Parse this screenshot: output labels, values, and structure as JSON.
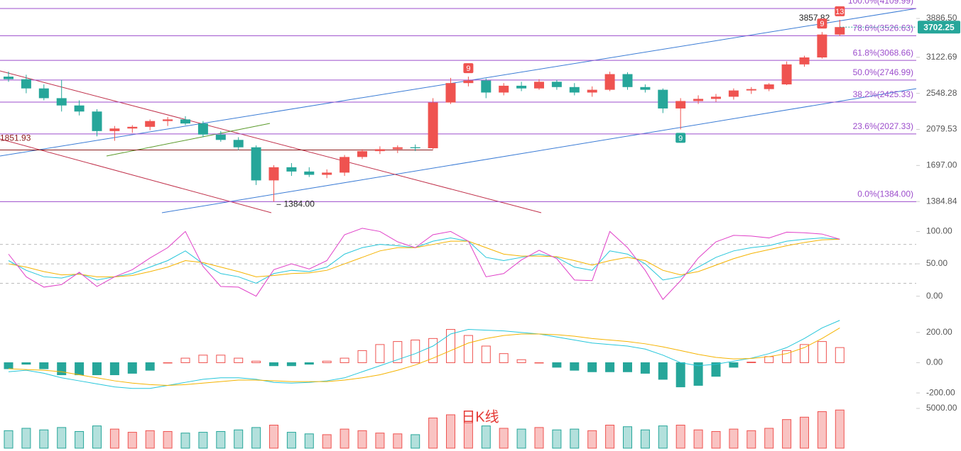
{
  "chart_data": [
    {
      "type": "candlestick",
      "log": true,
      "ylim": [
        1300,
        4313
      ],
      "yticks": [
        {
          "value": 3886.5,
          "label": "3886.50"
        },
        3122.69,
        2548.28,
        2079.53,
        {
          "value": 1697,
          "label": "1697.00"
        },
        1384.84
      ],
      "up_color": "#ef5350",
      "down_color": "#26a69a",
      "open": [
        2800,
        2760,
        2620,
        2480,
        2380,
        2300,
        2060,
        2090,
        2110,
        2180,
        2200,
        2150,
        2020,
        1960,
        1880,
        1560,
        1680,
        1640,
        1610,
        1630,
        1780,
        1840,
        1860,
        1880,
        1870,
        2420,
        2700,
        2740,
        2560,
        2660,
        2620,
        2720,
        2640,
        2560,
        2600,
        2840,
        2640,
        2600,
        2340,
        2440,
        2470,
        2500,
        2590,
        2610,
        2680,
        3000,
        3120,
        3550
      ],
      "high": [
        2880,
        2830,
        2680,
        2750,
        2450,
        2330,
        2120,
        2130,
        2200,
        2230,
        2240,
        2180,
        2060,
        1990,
        1900,
        1700,
        1720,
        1680,
        1660,
        1800,
        1860,
        1890,
        1900,
        1910,
        2480,
        2780,
        2800,
        2770,
        2700,
        2720,
        2760,
        2750,
        2700,
        2650,
        2880,
        2870,
        2680,
        2620,
        2480,
        2520,
        2540,
        2620,
        2640,
        2700,
        3050,
        3150,
        3600,
        3857.82
      ],
      "low": [
        2720,
        2550,
        2450,
        2300,
        2250,
        2000,
        1950,
        2040,
        2070,
        2120,
        2130,
        1990,
        1940,
        1850,
        1520,
        1384,
        1600,
        1590,
        1580,
        1600,
        1760,
        1810,
        1820,
        1840,
        1860,
        2400,
        2650,
        2480,
        2520,
        2580,
        2600,
        2600,
        2520,
        2500,
        2580,
        2600,
        2560,
        2280,
        2080,
        2400,
        2430,
        2460,
        2540,
        2580,
        2670,
        2960,
        3100,
        3520
      ],
      "close": [
        2760,
        2620,
        2480,
        2380,
        2300,
        2060,
        2090,
        2110,
        2180,
        2200,
        2150,
        2020,
        1960,
        1880,
        1560,
        1680,
        1640,
        1610,
        1630,
        1780,
        1840,
        1860,
        1880,
        1870,
        2420,
        2700,
        2740,
        2560,
        2660,
        2620,
        2720,
        2640,
        2560,
        2600,
        2840,
        2640,
        2600,
        2340,
        2440,
        2470,
        2500,
        2590,
        2610,
        2680,
        3000,
        3120,
        3550,
        3702.25
      ],
      "low_label": "1384.00",
      "level_line": 1851.93,
      "level_color": "#9c4dcc",
      "levels": [
        {
          "value": 4109.99,
          "label": "100.0%(4109.99)"
        },
        {
          "value": 3526.63,
          "label": "78.6%(3526.63)"
        },
        {
          "value": 3068.66,
          "label": "61.8%(3068.66)"
        },
        {
          "value": 2746.99,
          "label": "50.0%(2746.99)"
        },
        {
          "value": 2425.33,
          "label": "38.2%(2425.33)"
        },
        {
          "value": 2027.33,
          "label": "23.6%(2027.33)"
        },
        {
          "value": 1384,
          "label": "0.0%(1384.00)"
        }
      ],
      "markers": [
        "9",
        "9",
        "13",
        "9"
      ]
    },
    {
      "type": "line",
      "ylim": [
        -8,
        118
      ],
      "yticks": [
        {
          "value": 100,
          "label": "100.00"
        },
        {
          "value": 50,
          "label": "50.00"
        },
        {
          "value": 0,
          "label": "0.00"
        }
      ],
      "ref_lines": [
        80,
        50,
        20
      ],
      "series": [
        {
          "color": "#26c6da",
          "values": [
            55,
            40,
            30,
            28,
            35,
            25,
            30,
            35,
            45,
            55,
            70,
            50,
            35,
            30,
            20,
            35,
            40,
            38,
            45,
            65,
            75,
            80,
            78,
            75,
            85,
            90,
            85,
            60,
            55,
            60,
            65,
            60,
            45,
            40,
            70,
            65,
            50,
            25,
            30,
            45,
            60,
            70,
            75,
            78,
            85,
            88,
            90,
            88
          ]
        },
        {
          "color": "#f5b300",
          "values": [
            50,
            45,
            38,
            33,
            34,
            30,
            30,
            32,
            38,
            45,
            55,
            52,
            45,
            38,
            30,
            32,
            35,
            36,
            40,
            50,
            60,
            70,
            75,
            75,
            80,
            85,
            85,
            75,
            65,
            62,
            62,
            61,
            55,
            48,
            55,
            60,
            55,
            40,
            33,
            38,
            48,
            58,
            66,
            72,
            78,
            83,
            87,
            88
          ]
        },
        {
          "color": "#e040c8",
          "values": [
            65,
            30,
            14,
            18,
            37,
            15,
            30,
            41,
            59,
            75,
            100,
            46,
            15,
            14,
            0,
            41,
            50,
            42,
            55,
            95,
            105,
            100,
            84,
            75,
            95,
            100,
            85,
            30,
            35,
            56,
            71,
            58,
            25,
            24,
            100,
            75,
            40,
            -5,
            24,
            59,
            84,
            94,
            93,
            90,
            99,
            98,
            96,
            88
          ]
        }
      ]
    },
    {
      "type": "macd",
      "ylim": [
        -251,
        382
      ],
      "yticks": [
        {
          "value": 200,
          "label": "200.00"
        },
        {
          "value": 0,
          "label": "0.00"
        },
        {
          "value": -200,
          "label": "-200.00"
        }
      ],
      "series": [
        {
          "color": "#26c6da",
          "values": [
            -60,
            -50,
            -70,
            -100,
            -120,
            -140,
            -160,
            -170,
            -170,
            -150,
            -130,
            -110,
            -100,
            -100,
            -110,
            -130,
            -135,
            -130,
            -120,
            -100,
            -60,
            -20,
            20,
            60,
            110,
            190,
            220,
            215,
            210,
            200,
            190,
            170,
            150,
            130,
            120,
            110,
            90,
            50,
            0,
            -20,
            -10,
            10,
            30,
            60,
            100,
            160,
            230,
            280
          ]
        },
        {
          "color": "#f5b300",
          "values": [
            -40,
            -45,
            -50,
            -60,
            -80,
            -100,
            -120,
            -135,
            -145,
            -150,
            -145,
            -135,
            -125,
            -115,
            -115,
            -120,
            -125,
            -125,
            -125,
            -115,
            -100,
            -80,
            -50,
            -15,
            30,
            80,
            130,
            160,
            180,
            190,
            190,
            185,
            175,
            160,
            150,
            140,
            125,
            105,
            80,
            55,
            35,
            25,
            28,
            40,
            60,
            100,
            160,
            230
          ]
        }
      ],
      "histogram": {
        "up_color": "#ef5350",
        "down_color": "#26a69a",
        "values": [
          -40,
          -10,
          -40,
          -80,
          -80,
          -80,
          -80,
          -70,
          -50,
          0,
          30,
          50,
          50,
          30,
          10,
          -20,
          -20,
          -10,
          10,
          30,
          80,
          120,
          140,
          150,
          160,
          220,
          180,
          110,
          60,
          20,
          0,
          -30,
          -50,
          -60,
          -60,
          -60,
          -70,
          -110,
          -160,
          -150,
          -90,
          -30,
          4,
          40,
          80,
          120,
          140,
          100
        ]
      }
    },
    {
      "type": "volume",
      "title": "日K线",
      "ylim": [
        0,
        5800
      ],
      "yticks": [
        {
          "value": 5000,
          "label": "5000.00"
        }
      ],
      "values": [
        2200,
        2500,
        2300,
        2600,
        2100,
        2800,
        2400,
        2000,
        2200,
        2100,
        1900,
        2000,
        2100,
        2300,
        2600,
        2900,
        2000,
        1800,
        1700,
        2400,
        2200,
        1900,
        1800,
        1700,
        3800,
        4200,
        3200,
        2800,
        2500,
        2400,
        2600,
        2300,
        2400,
        2200,
        2900,
        2700,
        2300,
        2800,
        2900,
        2300,
        2100,
        2400,
        2200,
        2500,
        3600,
        3900,
        4600,
        4800
      ]
    }
  ]
}
